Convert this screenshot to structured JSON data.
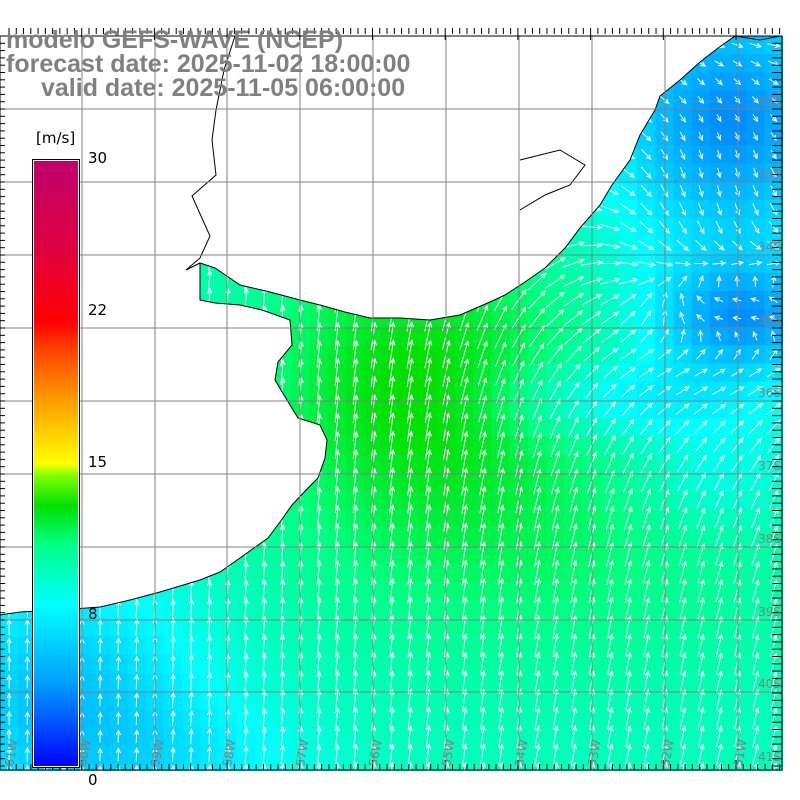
{
  "title": {
    "line1": "modelo GEFS-WAVE (NCEP)",
    "line2": "forecast date: 2025-11-02 18:00:00",
    "line3": "valid date: 2025-11-05 06:00:00"
  },
  "colorbar": {
    "unit": "[m/s]",
    "ticks": [
      "30",
      "22",
      "15",
      "8",
      "0"
    ],
    "tick_values": [
      30,
      22,
      15,
      8,
      0
    ]
  },
  "lat_labels": [
    "32S",
    "33S",
    "34S",
    "35S",
    "36S",
    "37S",
    "38S",
    "39S",
    "40S",
    "41S"
  ],
  "lon_labels": [
    "61W",
    "60W",
    "59W",
    "58W",
    "57W",
    "56W",
    "55W",
    "54W",
    "53W",
    "52W",
    "51W"
  ],
  "colors": {
    "land": "#ffffff",
    "grid": "#808080",
    "coast": "#000000",
    "label": "#808080"
  }
}
